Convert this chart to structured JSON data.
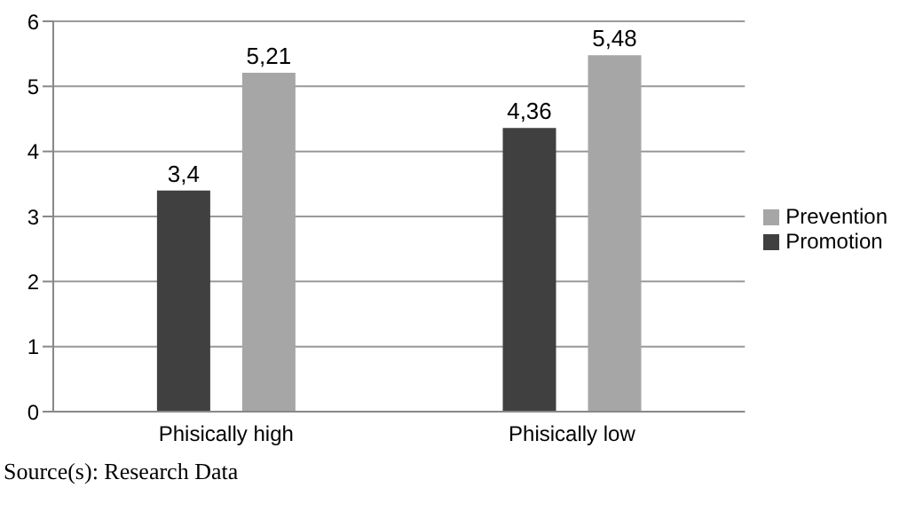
{
  "chart_data": {
    "type": "bar",
    "categories": [
      "Phisically high",
      "Phisically low"
    ],
    "series": [
      {
        "name": "Promotion",
        "color": "#404040",
        "values": [
          3.4,
          4.36
        ],
        "value_labels": [
          "3,4",
          "4,36"
        ]
      },
      {
        "name": "Prevention",
        "color": "#a6a6a6",
        "values": [
          5.21,
          5.48
        ],
        "value_labels": [
          "5,21",
          "5,48"
        ]
      }
    ],
    "ylim": [
      0,
      6
    ],
    "yticks": [
      0,
      1,
      2,
      3,
      4,
      5,
      6
    ],
    "grid": "y",
    "legend": "right",
    "annotations": [
      "Source(s): Research Data"
    ]
  }
}
